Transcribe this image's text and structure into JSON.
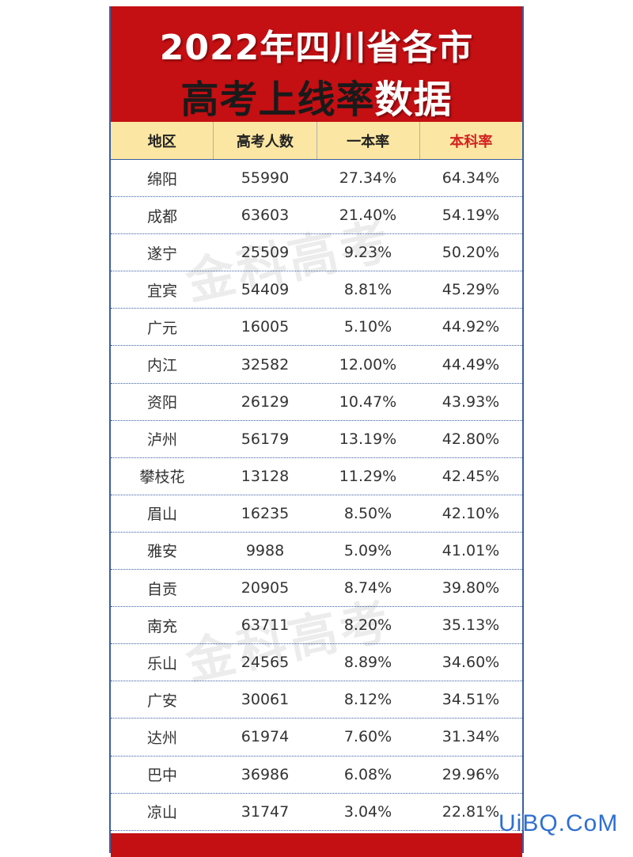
{
  "header": {
    "title_line1": "2022年四川省各市",
    "title_line2_dark": "高考上线率",
    "title_line2_light": "数据"
  },
  "table": {
    "columns": [
      "地区",
      "高考人数",
      "一本率",
      "本科率"
    ],
    "rows": [
      [
        "绵阳",
        "55990",
        "27.34%",
        "64.34%"
      ],
      [
        "成都",
        "63603",
        "21.40%",
        "54.19%"
      ],
      [
        "遂宁",
        "25509",
        "9.23%",
        "50.20%"
      ],
      [
        "宜宾",
        "54409",
        "8.81%",
        "45.29%"
      ],
      [
        "广元",
        "16005",
        "5.10%",
        "44.92%"
      ],
      [
        "内江",
        "32582",
        "12.00%",
        "44.49%"
      ],
      [
        "资阳",
        "26129",
        "10.47%",
        "43.93%"
      ],
      [
        "泸州",
        "56179",
        "13.19%",
        "42.80%"
      ],
      [
        "攀枝花",
        "13128",
        "11.29%",
        "42.45%"
      ],
      [
        "眉山",
        "16235",
        "8.50%",
        "42.10%"
      ],
      [
        "雅安",
        "9988",
        "5.09%",
        "41.01%"
      ],
      [
        "自贡",
        "20905",
        "8.74%",
        "39.80%"
      ],
      [
        "南充",
        "63711",
        "8.20%",
        "35.13%"
      ],
      [
        "乐山",
        "24565",
        "8.89%",
        "34.60%"
      ],
      [
        "广安",
        "30061",
        "8.12%",
        "34.51%"
      ],
      [
        "达州",
        "61974",
        "7.60%",
        "31.34%"
      ],
      [
        "巴中",
        "36986",
        "6.08%",
        "29.96%"
      ],
      [
        "凉山",
        "31747",
        "3.04%",
        "22.81%"
      ]
    ]
  },
  "watermark": "金科高考",
  "brand": "UiBQ.CoM",
  "colors": {
    "header_red": "#c40f13",
    "header_row_bg": "#fbe7a3",
    "highlight_column_text": "#d42020",
    "border_blue": "#3a5fa0",
    "brand_blue": "#2f6fd1"
  }
}
